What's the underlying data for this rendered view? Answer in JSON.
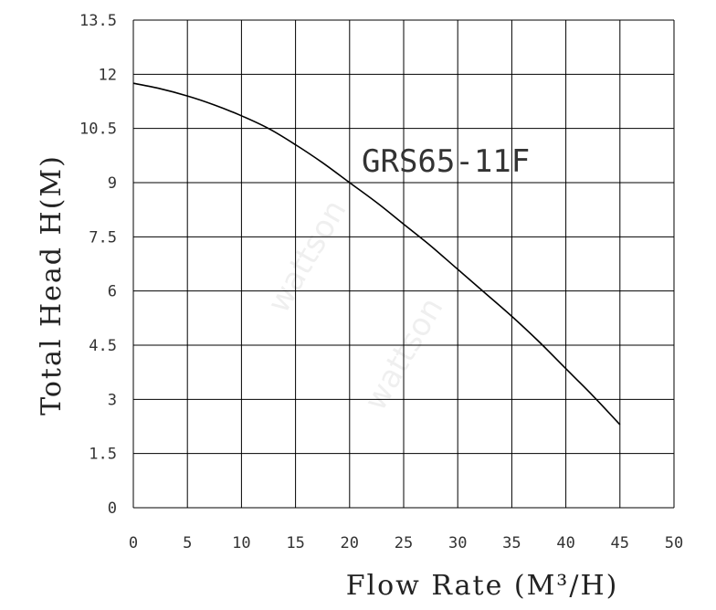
{
  "chart_data": {
    "type": "line",
    "xlabel": "Flow Rate (M³/H)",
    "ylabel": "Total Head H(M)",
    "x_ticks": [
      "0",
      "5",
      "10",
      "15",
      "20",
      "25",
      "30",
      "35",
      "40",
      "45",
      "50"
    ],
    "y_ticks": [
      "0",
      "1.5",
      "3",
      "4.5",
      "6",
      "7.5",
      "9",
      "10.5",
      "12",
      "13.5"
    ],
    "xlim": [
      0,
      50
    ],
    "ylim": [
      0,
      13.5
    ],
    "grid": true,
    "series": [
      {
        "name": "GRS65-11F",
        "color": "#000000",
        "x": [
          0,
          2.5,
          5,
          7.5,
          10,
          12.5,
          15,
          17.5,
          20,
          22.5,
          25,
          27.5,
          30,
          32.5,
          35,
          37.5,
          40,
          42.5,
          45
        ],
        "y": [
          11.75,
          11.6,
          11.4,
          11.15,
          10.85,
          10.5,
          10.05,
          9.55,
          9.0,
          8.45,
          7.85,
          7.25,
          6.6,
          5.95,
          5.3,
          4.6,
          3.85,
          3.1,
          2.3
        ]
      }
    ]
  },
  "watermark": "wattson"
}
